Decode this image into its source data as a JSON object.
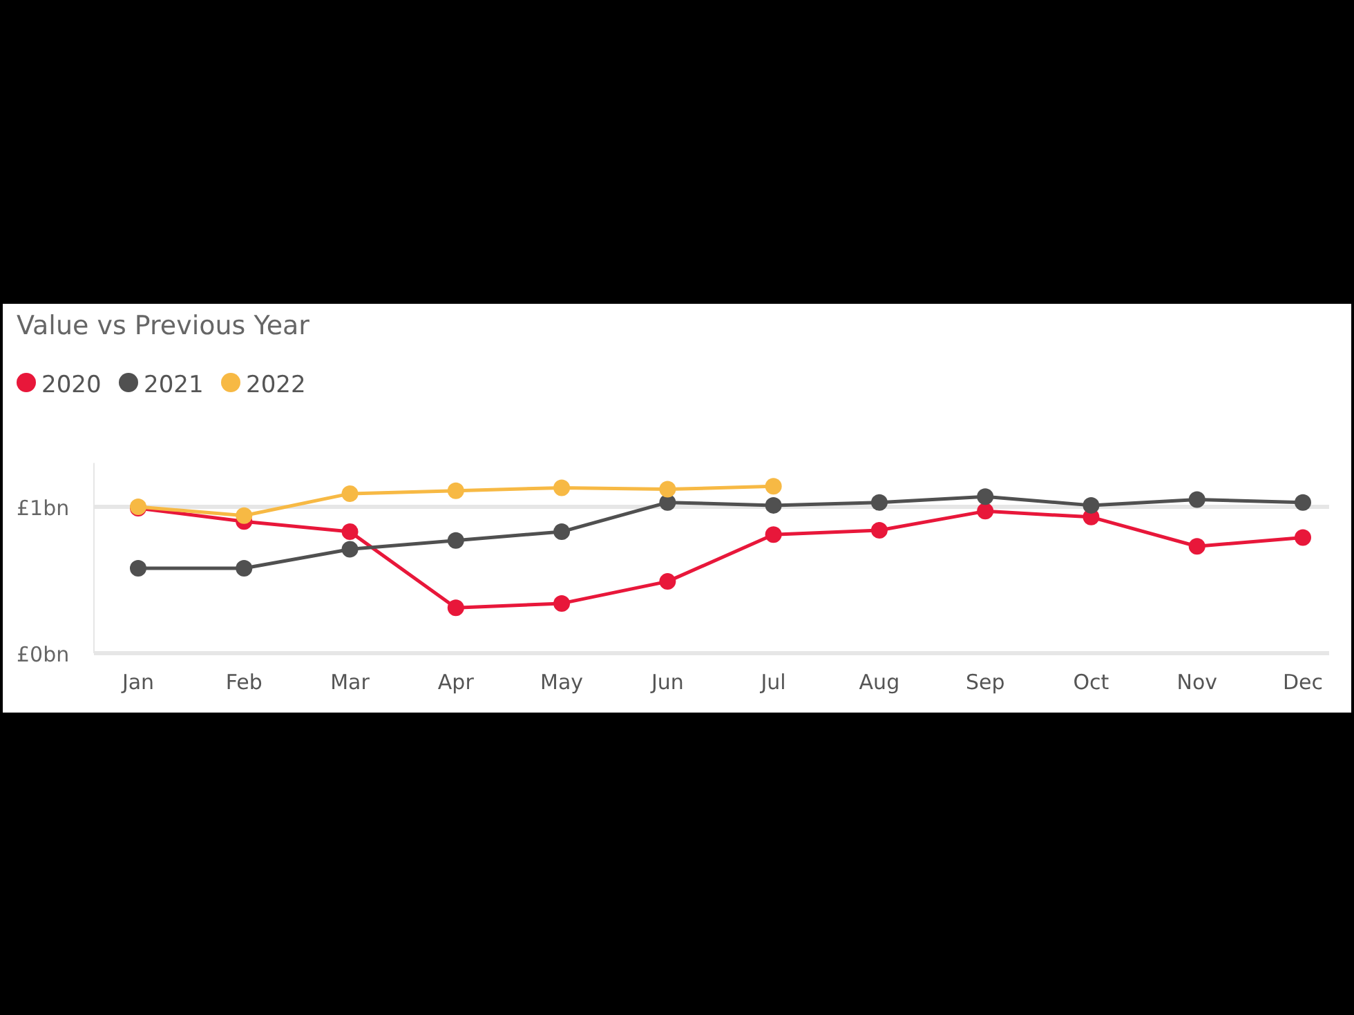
{
  "chart_data": {
    "type": "line",
    "title": "Value vs Previous Year",
    "categories": [
      "Jan",
      "Feb",
      "Mar",
      "Apr",
      "May",
      "Jun",
      "Jul",
      "Aug",
      "Sep",
      "Oct",
      "Nov",
      "Dec"
    ],
    "series": [
      {
        "name": "2020",
        "color": "#e8173a",
        "values": [
          0.99,
          0.9,
          0.83,
          0.31,
          0.34,
          0.49,
          0.81,
          0.84,
          0.97,
          0.93,
          0.73,
          0.79
        ]
      },
      {
        "name": "2021",
        "color": "#505050",
        "values": [
          0.58,
          0.58,
          0.71,
          0.77,
          0.83,
          1.03,
          1.01,
          1.03,
          1.07,
          1.01,
          1.05,
          1.03
        ]
      },
      {
        "name": "2022",
        "color": "#f7b944",
        "values": [
          1.0,
          0.94,
          1.09,
          1.11,
          1.13,
          1.12,
          1.14,
          null,
          null,
          null,
          null,
          null
        ]
      }
    ],
    "ylim": [
      0,
      1.3
    ],
    "yticks": [
      {
        "value": 0,
        "label": "£0bn"
      },
      {
        "value": 1,
        "label": "£1bn"
      }
    ],
    "grid": "y",
    "legend": "top left",
    "marker": "circle",
    "line_style": "solid"
  }
}
